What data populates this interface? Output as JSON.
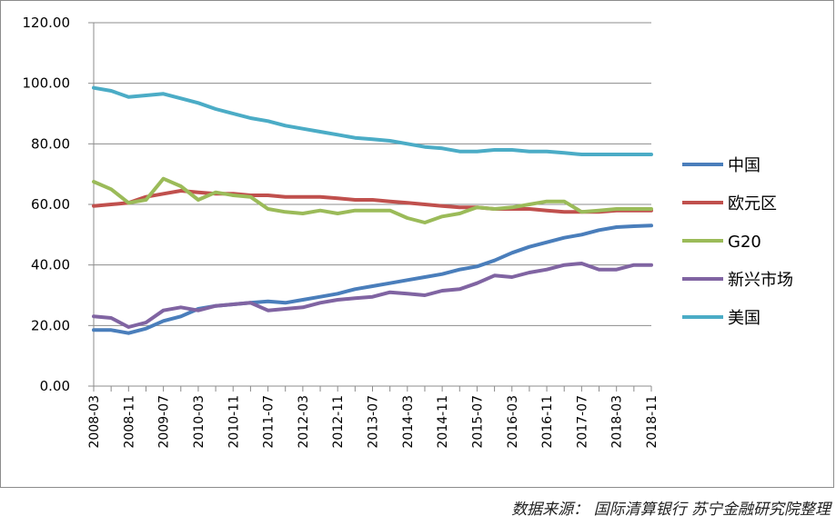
{
  "source_note": "数据来源：   国际清算银行  苏宁金融研究院整理",
  "chart_data": {
    "type": "line",
    "title": "",
    "xlabel": "",
    "ylabel": "",
    "ylim": [
      0,
      120
    ],
    "yticks": [
      "0.00",
      "20.00",
      "40.00",
      "60.00",
      "80.00",
      "100.00",
      "120.00"
    ],
    "grid": true,
    "legend_position": "right",
    "x_tick_labels": [
      "2008-03",
      "2008-11",
      "2009-07",
      "2010-03",
      "2010-11",
      "2011-07",
      "2012-03",
      "2012-11",
      "2013-07",
      "2014-03",
      "2014-11",
      "2015-07",
      "2016-03",
      "2016-11",
      "2017-07",
      "2018-03",
      "2018-11"
    ],
    "x_tick_indices": [
      0,
      2,
      4,
      6,
      8,
      10,
      12,
      14,
      16,
      18,
      20,
      22,
      24,
      26,
      28,
      30,
      32
    ],
    "x_count": 33,
    "series": [
      {
        "name": "中国",
        "color": "#4a7ebb",
        "values": [
          18.5,
          18.5,
          17.5,
          19.0,
          21.5,
          23.0,
          25.5,
          26.5,
          27.0,
          27.5,
          28.0,
          27.5,
          28.5,
          29.5,
          30.5,
          32.0,
          33.0,
          34.0,
          35.0,
          36.0,
          37.0,
          38.5,
          39.5,
          41.5,
          44.0,
          46.0,
          47.5,
          49.0,
          50.0,
          51.5,
          52.5,
          52.8,
          53.0
        ]
      },
      {
        "name": "欧元区",
        "color": "#c0504d",
        "values": [
          59.5,
          60.0,
          60.5,
          62.5,
          63.5,
          64.5,
          64.0,
          63.5,
          63.5,
          63.0,
          63.0,
          62.5,
          62.5,
          62.5,
          62.0,
          61.5,
          61.5,
          61.0,
          60.5,
          60.0,
          59.5,
          59.0,
          59.0,
          58.5,
          58.5,
          58.5,
          58.0,
          57.5,
          57.5,
          57.5,
          58.0,
          58.0,
          58.0
        ]
      },
      {
        "name": "G20",
        "color": "#9bbb59",
        "values": [
          67.5,
          65.0,
          60.5,
          61.5,
          68.5,
          66.0,
          61.5,
          64.0,
          63.0,
          62.5,
          58.5,
          57.5,
          57.0,
          58.0,
          57.0,
          58.0,
          58.0,
          58.0,
          55.5,
          54.0,
          56.0,
          57.0,
          59.0,
          58.5,
          59.0,
          60.0,
          61.0,
          61.0,
          57.5,
          58.0,
          58.5,
          58.5,
          58.5
        ]
      },
      {
        "name": "新兴市场",
        "color": "#8064a2",
        "values": [
          23.0,
          22.5,
          19.5,
          21.0,
          25.0,
          26.0,
          25.0,
          26.5,
          27.0,
          27.5,
          25.0,
          25.5,
          26.0,
          27.5,
          28.5,
          29.0,
          29.5,
          31.0,
          30.5,
          30.0,
          31.5,
          32.0,
          34.0,
          36.5,
          36.0,
          37.5,
          38.5,
          40.0,
          40.5,
          38.5,
          38.5,
          40.0,
          40.0
        ]
      },
      {
        "name": "美国",
        "color": "#4bacc6",
        "values": [
          98.5,
          97.5,
          95.5,
          96.0,
          96.5,
          95.0,
          93.5,
          91.5,
          90.0,
          88.5,
          87.5,
          86.0,
          85.0,
          84.0,
          83.0,
          82.0,
          81.5,
          81.0,
          80.0,
          79.0,
          78.5,
          77.5,
          77.5,
          78.0,
          78.0,
          77.5,
          77.5,
          77.0,
          76.5,
          76.5,
          76.5,
          76.5,
          76.5
        ]
      }
    ]
  }
}
